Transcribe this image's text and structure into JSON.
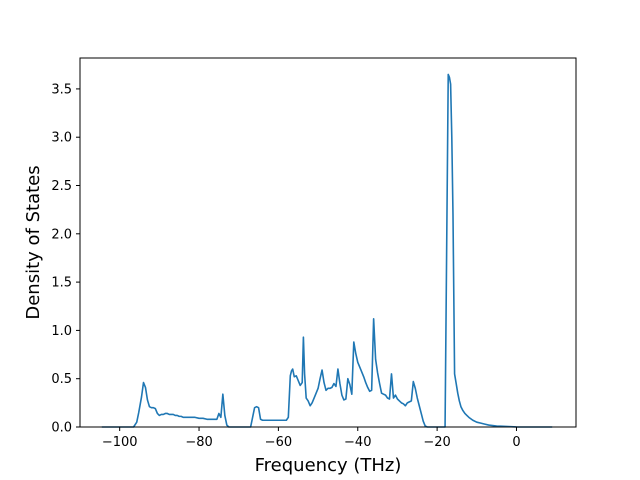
{
  "chart_data": {
    "type": "line",
    "title": "",
    "xlabel": "Frequency (THz)",
    "ylabel": "Density of States",
    "xlim": [
      -110,
      15
    ],
    "ylim": [
      0,
      3.82
    ],
    "xticks": [
      -100,
      -80,
      -60,
      -40,
      -20,
      0
    ],
    "xtick_labels": [
      "−100",
      "−80",
      "−60",
      "−40",
      "−20",
      "0"
    ],
    "yticks": [
      0,
      0.5,
      1.0,
      1.5,
      2.0,
      2.5,
      3.0,
      3.5
    ],
    "ytick_labels": [
      "0.0",
      "0.5",
      "1.0",
      "1.5",
      "2.0",
      "2.5",
      "3.0",
      "3.5"
    ],
    "grid": false,
    "legend": "none",
    "colors": {
      "line": "#1f77b4",
      "axes": "#000000",
      "background": "#ffffff"
    },
    "series": [
      {
        "x": [
          -104.5,
          -100,
          -96.5,
          -95.7,
          -95.2,
          -94.5,
          -94.0,
          -93.5,
          -93.0,
          -92.5,
          -92.0,
          -91.5,
          -91.0,
          -90.5,
          -90.0,
          -89.5,
          -89.0,
          -88.5,
          -88.0,
          -87.5,
          -87.0,
          -86.5,
          -86.0,
          -85.5,
          -85.0,
          -84.5,
          -84.0,
          -83.0,
          -82.0,
          -81.0,
          -80.0,
          -79.0,
          -78.0,
          -77.0,
          -76.0,
          -75.5,
          -75.0,
          -74.5,
          -74.0,
          -73.5,
          -73.0,
          -72.5,
          -72.0,
          -68.0,
          -67.0,
          -66.5,
          -66.0,
          -65.5,
          -65.0,
          -64.5,
          -64.0,
          -62.0,
          -60.0,
          -58.0,
          -57.5,
          -57.0,
          -56.7,
          -56.4,
          -56.0,
          -55.5,
          -55.0,
          -54.5,
          -54.0,
          -53.7,
          -53.4,
          -53.0,
          -52.5,
          -52.0,
          -51.5,
          -51.0,
          -50.5,
          -50.0,
          -49.5,
          -49.0,
          -48.5,
          -48.0,
          -47.5,
          -47.0,
          -46.5,
          -46.0,
          -45.5,
          -45.0,
          -44.5,
          -44.0,
          -43.5,
          -43.0,
          -42.5,
          -42.0,
          -41.5,
          -41.0,
          -40.5,
          -40.0,
          -39.5,
          -39.0,
          -38.5,
          -38.0,
          -37.5,
          -37.0,
          -36.5,
          -36.0,
          -35.5,
          -35.0,
          -34.5,
          -34.0,
          -33.5,
          -33.0,
          -32.5,
          -32.0,
          -31.5,
          -31.0,
          -30.5,
          -30.0,
          -29.5,
          -29.0,
          -28.5,
          -28.0,
          -27.5,
          -27.0,
          -26.5,
          -26.0,
          -25.5,
          -25.0,
          -24.5,
          -24.0,
          -23.5,
          -23.0,
          -22.5,
          -22.0,
          -21.5,
          -21.0,
          -20.5,
          -20.0,
          -18.0,
          -17.2,
          -16.9,
          -16.6,
          -16.3,
          -16.0,
          -15.6,
          -15.2,
          -14.8,
          -14.4,
          -14.0,
          -13.5,
          -13.0,
          -12.5,
          -12.0,
          -11.0,
          -10.0,
          -9.0,
          -8.0,
          -7.0,
          -6.0,
          -5.0,
          -4.0,
          -2.0,
          0.0,
          2.0,
          5.0,
          9.0
        ],
        "y": [
          0.0,
          0.0,
          0.0,
          0.05,
          0.15,
          0.31,
          0.46,
          0.41,
          0.28,
          0.21,
          0.2,
          0.2,
          0.19,
          0.14,
          0.12,
          0.13,
          0.13,
          0.14,
          0.14,
          0.13,
          0.13,
          0.13,
          0.12,
          0.12,
          0.11,
          0.11,
          0.1,
          0.1,
          0.1,
          0.1,
          0.09,
          0.09,
          0.08,
          0.08,
          0.08,
          0.08,
          0.14,
          0.1,
          0.34,
          0.12,
          0.02,
          0.0,
          0.0,
          0.0,
          0.0,
          0.1,
          0.2,
          0.21,
          0.2,
          0.08,
          0.07,
          0.07,
          0.07,
          0.07,
          0.1,
          0.53,
          0.58,
          0.6,
          0.52,
          0.53,
          0.48,
          0.43,
          0.46,
          0.93,
          0.55,
          0.3,
          0.27,
          0.22,
          0.25,
          0.3,
          0.35,
          0.4,
          0.5,
          0.59,
          0.46,
          0.38,
          0.4,
          0.4,
          0.41,
          0.45,
          0.42,
          0.6,
          0.45,
          0.33,
          0.28,
          0.29,
          0.5,
          0.44,
          0.34,
          0.88,
          0.76,
          0.67,
          0.62,
          0.57,
          0.52,
          0.46,
          0.41,
          0.37,
          0.38,
          1.12,
          0.7,
          0.56,
          0.45,
          0.35,
          0.34,
          0.33,
          0.3,
          0.29,
          0.55,
          0.3,
          0.33,
          0.29,
          0.27,
          0.25,
          0.24,
          0.22,
          0.25,
          0.26,
          0.27,
          0.47,
          0.4,
          0.3,
          0.22,
          0.14,
          0.06,
          0.01,
          0.0,
          0.0,
          0.0,
          0.0,
          0.0,
          0.0,
          0.0,
          3.65,
          3.62,
          3.55,
          3.0,
          2.2,
          0.55,
          0.45,
          0.35,
          0.27,
          0.21,
          0.17,
          0.14,
          0.12,
          0.1,
          0.07,
          0.05,
          0.04,
          0.03,
          0.02,
          0.015,
          0.01,
          0.008,
          0.004,
          0.001,
          0.0,
          0.0,
          0.0
        ]
      }
    ]
  }
}
